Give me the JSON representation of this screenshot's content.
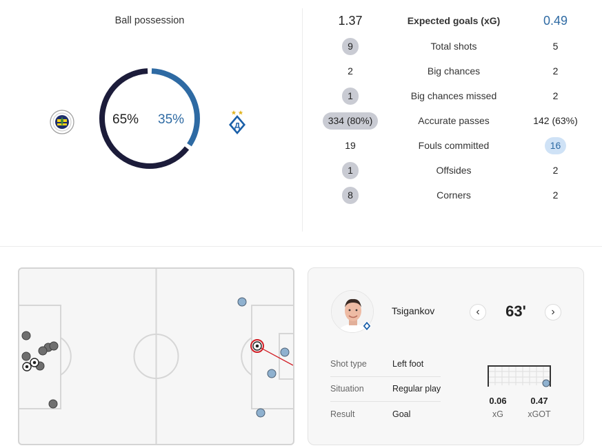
{
  "possession": {
    "title": "Ball possession",
    "home_pct": 65,
    "away_pct": 35,
    "home_label": "65%",
    "away_label": "35%",
    "home_color": "#1c1c3a",
    "away_color": "#2e6aa3"
  },
  "stats": {
    "xg": {
      "home": "1.37",
      "label": "Expected goals (xG)",
      "away": "0.49"
    },
    "rows": [
      {
        "home": "9",
        "label": "Total shots",
        "away": "5",
        "highlight": "home"
      },
      {
        "home": "2",
        "label": "Big chances",
        "away": "2",
        "highlight": "none"
      },
      {
        "home": "1",
        "label": "Big chances missed",
        "away": "2",
        "highlight": "home"
      },
      {
        "home": "334 (80%)",
        "label": "Accurate passes",
        "away": "142 (63%)",
        "highlight": "home"
      },
      {
        "home": "19",
        "label": "Fouls committed",
        "away": "16",
        "highlight": "away"
      },
      {
        "home": "1",
        "label": "Offsides",
        "away": "2",
        "highlight": "home"
      },
      {
        "home": "8",
        "label": "Corners",
        "away": "2",
        "highlight": "home"
      }
    ]
  },
  "shot": {
    "player_name": "Tsigankov",
    "minute": "63'",
    "prev_icon": "‹",
    "next_icon": "›",
    "details": [
      {
        "key": "Shot type",
        "value": "Left foot"
      },
      {
        "key": "Situation",
        "value": "Regular play"
      },
      {
        "key": "Result",
        "value": "Goal"
      }
    ],
    "xg_value": "0.06",
    "xg_label": "xG",
    "xgot_value": "0.47",
    "xgot_label": "xGOT"
  },
  "colors": {
    "home_shot": "#6f6f6f",
    "away_shot": "#8fb1cf",
    "selected_ring": "#d11f26",
    "accent_blue": "#2e6aa3"
  }
}
